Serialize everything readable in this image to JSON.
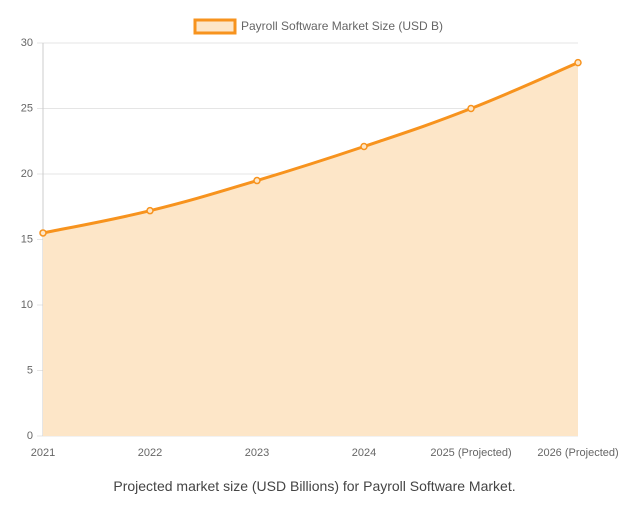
{
  "chart_data": {
    "type": "line",
    "categories": [
      "2021",
      "2022",
      "2023",
      "2024",
      "2025 (Projected)",
      "2026 (Projected)"
    ],
    "series": [
      {
        "name": "Payroll Software Market Size (USD B)",
        "color": "#f7931e",
        "fill": "#fde6c8",
        "values": [
          15.5,
          17.2,
          19.5,
          22.1,
          25.0,
          28.5
        ]
      }
    ],
    "ylim": [
      0,
      30
    ],
    "yticks": [
      0,
      5,
      10,
      15,
      20,
      25,
      30
    ],
    "grid": true,
    "legend": "top"
  },
  "caption": "Projected market size (USD Billions) for Payroll Software Market."
}
